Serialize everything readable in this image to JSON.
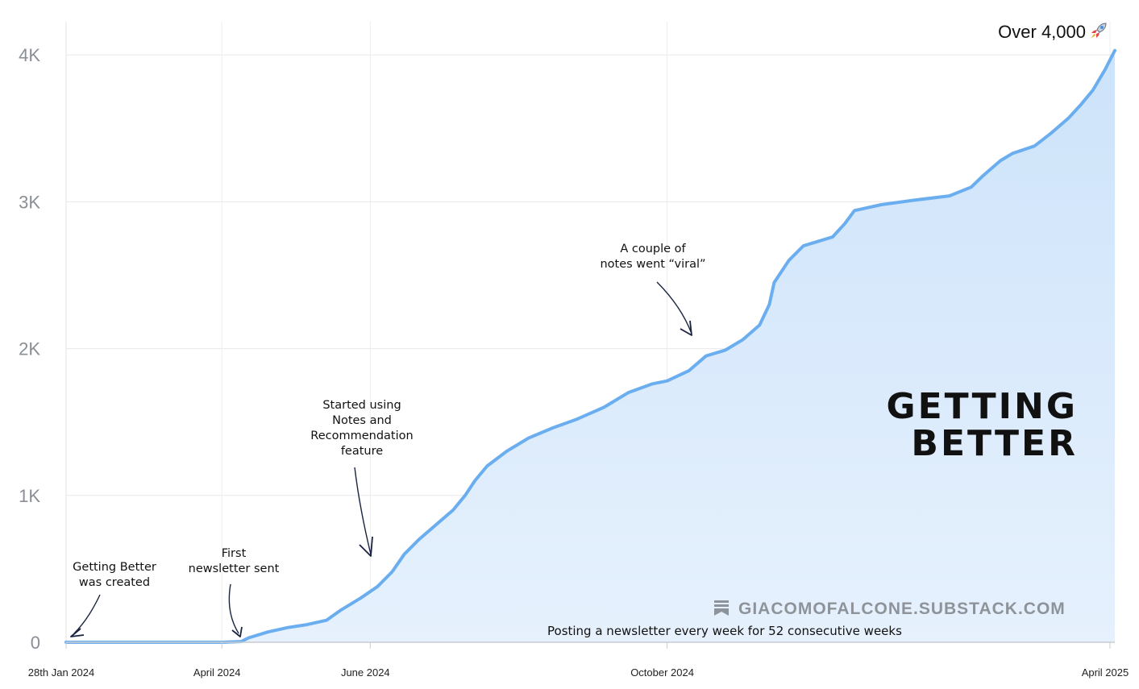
{
  "chart_data": {
    "type": "area",
    "title": "",
    "xlabel": "",
    "ylabel": "",
    "ylim": [
      0,
      4200
    ],
    "grid": true,
    "color": "#6aaeef",
    "fill_top": "#cde3fa",
    "fill_bottom": "#e6f1fd",
    "yticks": [
      {
        "value": 0,
        "label": "0"
      },
      {
        "value": 1000,
        "label": "1K"
      },
      {
        "value": 2000,
        "label": "2K"
      },
      {
        "value": 3000,
        "label": "3K"
      },
      {
        "value": 4000,
        "label": "4K"
      }
    ],
    "xticks": [
      {
        "date": "2024-01-28",
        "label": "28th Jan 2024"
      },
      {
        "date": "2024-04-01",
        "label": "April 2024"
      },
      {
        "date": "2024-06-01",
        "label": "June 2024"
      },
      {
        "date": "2024-10-01",
        "label": "October 2024"
      },
      {
        "date": "2025-04-01",
        "label": "April 2025"
      }
    ],
    "xlim": [
      "2024-01-28",
      "2025-04-03"
    ],
    "series": [
      {
        "points": [
          [
            "2024-01-28",
            0
          ],
          [
            "2024-04-01",
            0
          ],
          [
            "2024-04-09",
            5
          ],
          [
            "2024-04-12",
            30
          ],
          [
            "2024-04-20",
            70
          ],
          [
            "2024-04-28",
            100
          ],
          [
            "2024-05-06",
            120
          ],
          [
            "2024-05-14",
            150
          ],
          [
            "2024-05-20",
            220
          ],
          [
            "2024-05-28",
            300
          ],
          [
            "2024-06-04",
            380
          ],
          [
            "2024-06-10",
            480
          ],
          [
            "2024-06-15",
            600
          ],
          [
            "2024-06-21",
            700
          ],
          [
            "2024-06-28",
            800
          ],
          [
            "2024-07-05",
            900
          ],
          [
            "2024-07-10",
            1000
          ],
          [
            "2024-07-14",
            1100
          ],
          [
            "2024-07-19",
            1200
          ],
          [
            "2024-07-27",
            1300
          ],
          [
            "2024-08-05",
            1390
          ],
          [
            "2024-08-15",
            1460
          ],
          [
            "2024-08-25",
            1520
          ],
          [
            "2024-09-05",
            1600
          ],
          [
            "2024-09-15",
            1700
          ],
          [
            "2024-09-25",
            1760
          ],
          [
            "2024-10-01",
            1780
          ],
          [
            "2024-10-10",
            1850
          ],
          [
            "2024-10-17",
            1950
          ],
          [
            "2024-10-25",
            1990
          ],
          [
            "2024-11-01",
            2060
          ],
          [
            "2024-11-08",
            2160
          ],
          [
            "2024-11-12",
            2300
          ],
          [
            "2024-11-14",
            2450
          ],
          [
            "2024-11-20",
            2600
          ],
          [
            "2024-11-26",
            2700
          ],
          [
            "2024-12-08",
            2760
          ],
          [
            "2024-12-13",
            2850
          ],
          [
            "2024-12-17",
            2940
          ],
          [
            "2024-12-28",
            2980
          ],
          [
            "2025-01-10",
            3010
          ],
          [
            "2025-01-25",
            3040
          ],
          [
            "2025-02-03",
            3100
          ],
          [
            "2025-02-08",
            3180
          ],
          [
            "2025-02-15",
            3280
          ],
          [
            "2025-02-20",
            3330
          ],
          [
            "2025-03-01",
            3380
          ],
          [
            "2025-03-08",
            3470
          ],
          [
            "2025-03-15",
            3570
          ],
          [
            "2025-03-20",
            3660
          ],
          [
            "2025-03-25",
            3760
          ],
          [
            "2025-03-30",
            3900
          ],
          [
            "2025-04-03",
            4030
          ]
        ]
      }
    ],
    "annotations": [
      {
        "lines": [
          "Getting Better",
          "was created"
        ],
        "date": "2024-01-28",
        "value": 0
      },
      {
        "lines": [
          "First",
          "newsletter sent"
        ],
        "date": "2024-04-06",
        "value": 0
      },
      {
        "lines": [
          "Started using",
          "Notes and",
          "Recommendation",
          "feature"
        ],
        "date": "2024-06-14",
        "value": 580
      },
      {
        "lines": [
          "A couple of",
          "notes went “viral”"
        ],
        "date": "2024-10-28",
        "value": 2050
      }
    ]
  },
  "top_note": {
    "text": "Over 4,000"
  },
  "headline": {
    "line1": "GETTING",
    "line2": "BETTER"
  },
  "watermark": {
    "text": "GIACOMOFALCONE.SUBSTACK.COM",
    "icon": "bookmark-icon"
  },
  "footnote": {
    "text": "Posting a newsletter every week for 52 consecutive weeks"
  }
}
